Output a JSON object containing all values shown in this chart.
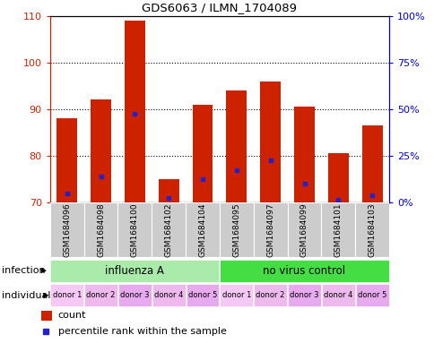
{
  "title": "GDS6063 / ILMN_1704089",
  "samples": [
    "GSM1684096",
    "GSM1684098",
    "GSM1684100",
    "GSM1684102",
    "GSM1684104",
    "GSM1684095",
    "GSM1684097",
    "GSM1684099",
    "GSM1684101",
    "GSM1684103"
  ],
  "count_values": [
    88,
    92,
    109,
    75,
    91,
    94,
    96,
    90.5,
    80.5,
    86.5
  ],
  "percentile_values": [
    72,
    75.5,
    89,
    71,
    75,
    77,
    79,
    74,
    70.5,
    71.5
  ],
  "ylim_left": [
    70,
    110
  ],
  "ylim_right": [
    0,
    100
  ],
  "yticks_left": [
    70,
    80,
    90,
    100,
    110
  ],
  "yticks_right": [
    0,
    25,
    50,
    75,
    100
  ],
  "ytick_labels_right": [
    "0%",
    "25%",
    "50%",
    "75%",
    "100%"
  ],
  "bar_color": "#cc2200",
  "dot_color": "#2222cc",
  "infection_groups": [
    {
      "label": "influenza A",
      "start": 0,
      "end": 5,
      "color": "#aaeaaa"
    },
    {
      "label": "no virus control",
      "start": 5,
      "end": 10,
      "color": "#44dd44"
    }
  ],
  "individuals": [
    "donor 1",
    "donor 2",
    "donor 3",
    "donor 4",
    "donor 5",
    "donor 1",
    "donor 2",
    "donor 3",
    "donor 4",
    "donor 5"
  ],
  "ind_colors": [
    "#f5c8f5",
    "#eebaee",
    "#e8aaee",
    "#eebaee",
    "#e8aaee",
    "#f5c8f5",
    "#eebaee",
    "#e8aaee",
    "#eebaee",
    "#e8aaee"
  ],
  "infection_label": "infection",
  "individual_label": "individual",
  "legend_count_label": "count",
  "legend_percentile_label": "percentile rank within the sample",
  "left_tick_color": "#cc2200",
  "right_tick_color": "#0000cc",
  "sample_bg": "#cccccc",
  "grid_yticks": [
    80,
    90,
    100
  ]
}
